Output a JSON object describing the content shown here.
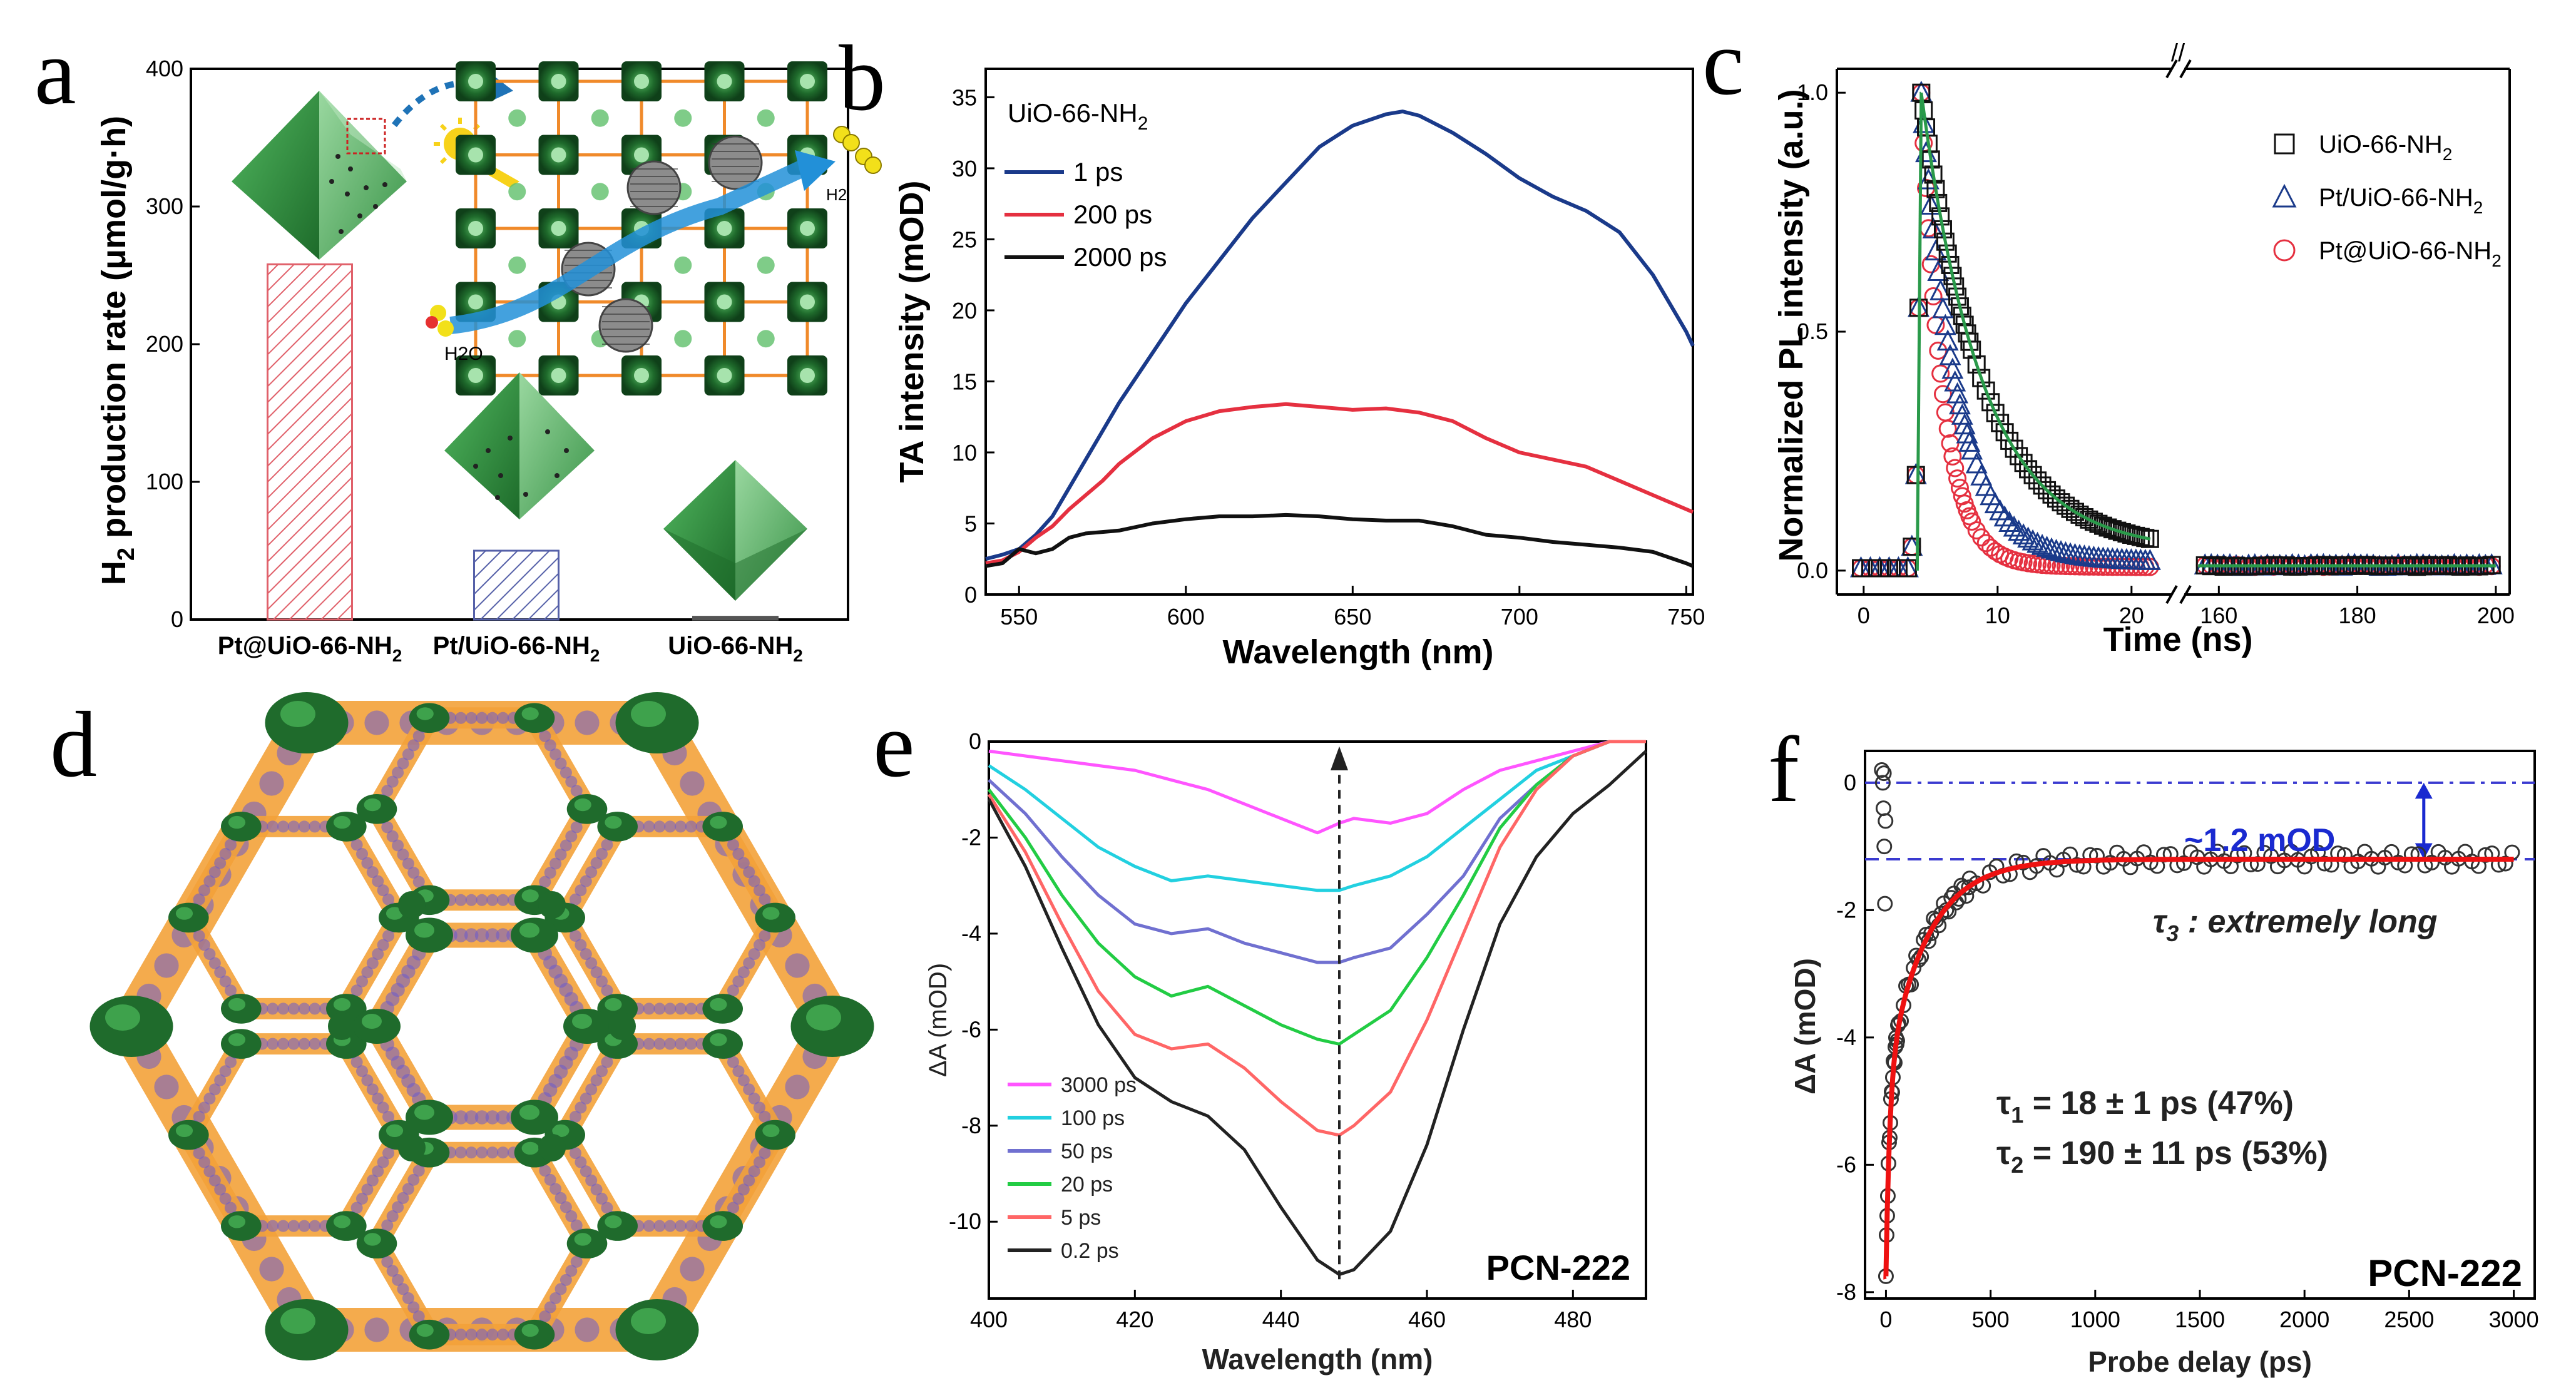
{
  "colors": {
    "dark_green": "#1f6b2c",
    "mid_green": "#2e8b3e",
    "light_green": "#5fb86a",
    "orange": "#f39c12",
    "blue_arrow": "#1f73b7",
    "red_bar": "#e0606a",
    "blue_bar": "#5560a8"
  },
  "panels": {
    "a": {
      "letter": "a",
      "icons": [
        "octahedron-icon",
        "sun-icon",
        "lattice-icon",
        "h2-icon",
        "h2o-icon"
      ],
      "labels": {
        "h2o": "H2O",
        "h2": "H2"
      }
    },
    "b": {
      "letter": "b"
    },
    "c": {
      "letter": "c"
    },
    "d": {
      "letter": "d",
      "caption_icon": "mof-hexagonal-framework-icon"
    },
    "e": {
      "letter": "e"
    },
    "f": {
      "letter": "f"
    }
  },
  "chart_data": [
    {
      "id": "a",
      "type": "bar",
      "ylabel_main": "H",
      "ylabel_sub": "2",
      "ylabel_rest": " production rate (μmol/g·h)",
      "ylim": [
        0,
        400
      ],
      "yticks": [
        0,
        100,
        200,
        300,
        400
      ],
      "categories": [
        {
          "main": "Pt@UiO-66-NH",
          "sub": "2"
        },
        {
          "main": "Pt/UiO-66-NH",
          "sub": "2"
        },
        {
          "main": "UiO-66-NH",
          "sub": "2"
        }
      ],
      "values": [
        258,
        50,
        2
      ],
      "bar_colors": [
        "#e0606a",
        "#5560a8",
        "#555555"
      ],
      "hatched": [
        true,
        true,
        false
      ]
    },
    {
      "id": "b",
      "type": "line",
      "title_main": "UiO-66-NH",
      "title_sub": "2",
      "xlabel": "Wavelength (nm)",
      "ylabel": "TA intensity (mOD)",
      "xlim": [
        540,
        752
      ],
      "ylim": [
        0,
        37
      ],
      "xticks": [
        550,
        600,
        650,
        700,
        750
      ],
      "yticks": [
        0,
        5,
        10,
        15,
        20,
        25,
        30,
        35
      ],
      "legend_position": "top-left",
      "series": [
        {
          "name": "1 ps",
          "color": "#1a3a8a",
          "x": [
            540,
            545,
            550,
            555,
            560,
            565,
            570,
            575,
            580,
            590,
            600,
            610,
            620,
            630,
            640,
            650,
            660,
            665,
            670,
            680,
            690,
            700,
            710,
            720,
            730,
            740,
            745,
            750,
            752
          ],
          "y": [
            2.5,
            2.8,
            3.2,
            4.2,
            5.5,
            7.5,
            9.5,
            11.5,
            13.5,
            17.0,
            20.5,
            23.5,
            26.5,
            29.0,
            31.5,
            33.0,
            33.8,
            34.0,
            33.7,
            32.5,
            31.0,
            29.3,
            28.0,
            27.0,
            25.5,
            22.5,
            20.5,
            18.5,
            17.5
          ]
        },
        {
          "name": "200 ps",
          "color": "#e53040",
          "x": [
            540,
            545,
            550,
            555,
            560,
            565,
            570,
            575,
            580,
            590,
            600,
            610,
            620,
            630,
            640,
            650,
            660,
            670,
            680,
            690,
            700,
            710,
            720,
            730,
            740,
            750,
            752
          ],
          "y": [
            2.2,
            2.4,
            3.0,
            4.0,
            4.8,
            6.0,
            7.0,
            8.0,
            9.2,
            11.0,
            12.2,
            12.9,
            13.2,
            13.4,
            13.2,
            13.0,
            13.1,
            12.8,
            12.2,
            11.0,
            10.0,
            9.5,
            9.0,
            8.0,
            7.0,
            6.0,
            5.8
          ]
        },
        {
          "name": "2000 ps",
          "color": "#111111",
          "x": [
            540,
            545,
            550,
            555,
            560,
            565,
            570,
            580,
            590,
            600,
            610,
            620,
            630,
            640,
            650,
            660,
            670,
            680,
            690,
            700,
            710,
            720,
            730,
            740,
            750,
            752
          ],
          "y": [
            2.0,
            2.2,
            3.2,
            2.9,
            3.2,
            4.0,
            4.3,
            4.5,
            5.0,
            5.3,
            5.5,
            5.5,
            5.6,
            5.5,
            5.3,
            5.2,
            5.2,
            4.8,
            4.2,
            4.0,
            3.7,
            3.5,
            3.3,
            3.0,
            2.2,
            2.0
          ]
        }
      ]
    },
    {
      "id": "c",
      "type": "scatter",
      "xlabel": "Time (ns)",
      "ylabel": "Normalized PL intensity (a.u.)",
      "ylim": [
        -0.05,
        1.05
      ],
      "yticks": [
        0.0,
        0.5,
        1.0
      ],
      "xlim_left": [
        -2,
        23
      ],
      "xlim_right": [
        155,
        202
      ],
      "xticks_left": [
        0,
        10,
        20
      ],
      "xticks_right": [
        160,
        180,
        200
      ],
      "axis_break": "//",
      "legend_position": "top-right",
      "series": [
        {
          "name_main": "UiO-66-NH",
          "name_sub": "2",
          "marker": "square",
          "color": "#111111",
          "tau": 4.5,
          "offset": 0.06
        },
        {
          "name_main": "Pt/UiO-66-NH",
          "name_sub": "2",
          "marker": "triangle",
          "color": "#1a3a8a",
          "tau": 2.6,
          "offset": 0.025
        },
        {
          "name_main": "Pt@UiO-66-NH",
          "name_sub": "2",
          "marker": "circle",
          "color": "#e53040",
          "tau": 1.6,
          "offset": 0.01
        }
      ],
      "fit_color": "#2a9a4a"
    },
    {
      "id": "e",
      "type": "line",
      "xlabel": "Wavelength (nm)",
      "ylabel": "ΔA (mOD)",
      "xlim": [
        400,
        490
      ],
      "ylim": [
        -11.6,
        0
      ],
      "xticks": [
        400,
        420,
        440,
        460,
        480
      ],
      "yticks": [
        0,
        -2,
        -4,
        -6,
        -8,
        -10
      ],
      "legend_position": "bottom-left",
      "annotation": "PCN-222",
      "arrow_x": 448,
      "series": [
        {
          "name": "3000 ps",
          "color": "#ff55ff",
          "x": [
            400,
            405,
            410,
            415,
            420,
            425,
            430,
            435,
            440,
            445,
            448,
            450,
            455,
            460,
            465,
            470,
            475,
            480,
            485,
            490
          ],
          "y": [
            -0.2,
            -0.3,
            -0.4,
            -0.5,
            -0.6,
            -0.8,
            -1.0,
            -1.3,
            -1.6,
            -1.9,
            -1.7,
            -1.6,
            -1.7,
            -1.5,
            -1.0,
            -0.6,
            -0.4,
            -0.2,
            0.0,
            0.0
          ]
        },
        {
          "name": "100 ps",
          "color": "#22d0e0",
          "x": [
            400,
            405,
            410,
            415,
            420,
            425,
            430,
            435,
            440,
            445,
            448,
            450,
            455,
            460,
            465,
            470,
            475,
            480,
            485,
            490
          ],
          "y": [
            -0.5,
            -1.0,
            -1.6,
            -2.2,
            -2.6,
            -2.9,
            -2.8,
            -2.9,
            -3.0,
            -3.1,
            -3.1,
            -3.0,
            -2.8,
            -2.4,
            -1.8,
            -1.2,
            -0.6,
            -0.3,
            0.0,
            0.0
          ]
        },
        {
          "name": "50 ps",
          "color": "#7070d0",
          "x": [
            400,
            405,
            410,
            415,
            420,
            425,
            430,
            435,
            440,
            445,
            448,
            450,
            455,
            460,
            465,
            470,
            475,
            480,
            485,
            490
          ],
          "y": [
            -0.8,
            -1.5,
            -2.4,
            -3.2,
            -3.8,
            -4.0,
            -3.9,
            -4.2,
            -4.4,
            -4.6,
            -4.6,
            -4.5,
            -4.3,
            -3.6,
            -2.8,
            -1.6,
            -0.9,
            -0.3,
            0.0,
            0.0
          ]
        },
        {
          "name": "20 ps",
          "color": "#22cc44",
          "x": [
            400,
            405,
            410,
            415,
            420,
            425,
            430,
            435,
            440,
            445,
            448,
            450,
            455,
            460,
            465,
            470,
            475,
            480,
            485,
            490
          ],
          "y": [
            -1.0,
            -2.0,
            -3.2,
            -4.2,
            -4.9,
            -5.3,
            -5.1,
            -5.5,
            -5.9,
            -6.2,
            -6.3,
            -6.1,
            -5.6,
            -4.5,
            -3.2,
            -1.8,
            -0.9,
            -0.3,
            0.0,
            0.0
          ]
        },
        {
          "name": "5 ps",
          "color": "#ff6666",
          "x": [
            400,
            405,
            410,
            415,
            420,
            425,
            430,
            435,
            440,
            445,
            448,
            450,
            455,
            460,
            465,
            470,
            475,
            480,
            485,
            490
          ],
          "y": [
            -1.1,
            -2.3,
            -3.8,
            -5.2,
            -6.1,
            -6.4,
            -6.3,
            -6.8,
            -7.5,
            -8.1,
            -8.2,
            -8.0,
            -7.3,
            -5.8,
            -4.0,
            -2.2,
            -1.0,
            -0.3,
            0.0,
            0.0
          ]
        },
        {
          "name": "0.2 ps",
          "color": "#222222",
          "x": [
            400,
            405,
            410,
            415,
            420,
            425,
            430,
            435,
            440,
            445,
            448,
            450,
            455,
            460,
            465,
            470,
            475,
            480,
            485,
            490
          ],
          "y": [
            -1.2,
            -2.6,
            -4.3,
            -5.9,
            -7.0,
            -7.5,
            -7.8,
            -8.5,
            -9.7,
            -10.8,
            -11.1,
            -11.0,
            -10.2,
            -8.4,
            -6.0,
            -3.8,
            -2.4,
            -1.5,
            -0.9,
            -0.2
          ]
        }
      ]
    },
    {
      "id": "f",
      "type": "scatter",
      "xlabel": "Probe delay (ps)",
      "ylabel": "ΔA (mOD)",
      "xlim": [
        -100,
        3100
      ],
      "ylim": [
        -8.1,
        0.5
      ],
      "xticks": [
        0,
        500,
        1000,
        1500,
        2000,
        2500,
        3000
      ],
      "yticks": [
        0,
        -2,
        -4,
        -6,
        -8
      ],
      "baseline": 0,
      "offset_level": -1.2,
      "offset_label": "~1.2 mOD",
      "tau3_symbol": "τ",
      "tau3_sub": "3",
      "tau3_text": " : extremely long",
      "tau1_symbol": "τ",
      "tau1_sub": "1",
      "tau1_text": " = 18 ± 1 ps (47%)",
      "tau2_symbol": "τ",
      "tau2_sub": "2",
      "tau2_text": " = 190 ± 11 ps (53%)",
      "annotation": "PCN-222",
      "fit": {
        "A1": 3.08,
        "t1": 18,
        "A2": 3.47,
        "t2": 190,
        "C": -1.2
      },
      "fit_color": "#ee1111"
    }
  ]
}
